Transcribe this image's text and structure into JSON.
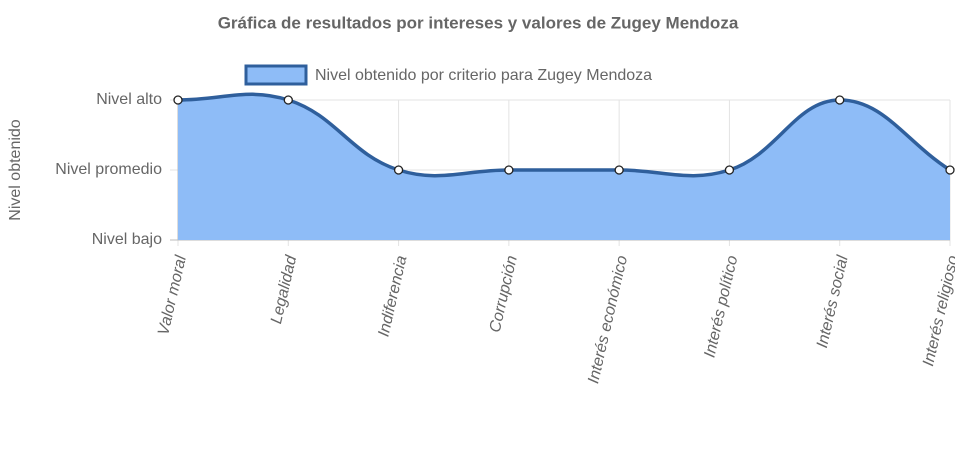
{
  "chart_data": {
    "type": "line",
    "title": "Gráfica de resultados por intereses y valores de Zugey Mendoza",
    "y_label": "Nivel obtenido",
    "categories": [
      "Valor moral",
      "Legalidad",
      "Indiferencia",
      "Corrupción",
      "Interés económico",
      "Interés político",
      "Interés social",
      "Interés religioso"
    ],
    "series": [
      {
        "name": "Nivel obtenido por criterio para Zugey Mendoza",
        "color": "#2f5f9c",
        "fill_color": "#8ebcf7",
        "values": [
          3,
          3,
          2,
          2,
          2,
          2,
          3,
          2
        ]
      }
    ],
    "ylim": [
      1,
      3
    ],
    "yticks": [
      {
        "value": 1,
        "label": "Nivel bajo"
      },
      {
        "value": 2,
        "label": "Nivel promedio"
      },
      {
        "value": 3,
        "label": "Nivel alto"
      }
    ],
    "fill": true,
    "grid": true,
    "legend": "top"
  }
}
